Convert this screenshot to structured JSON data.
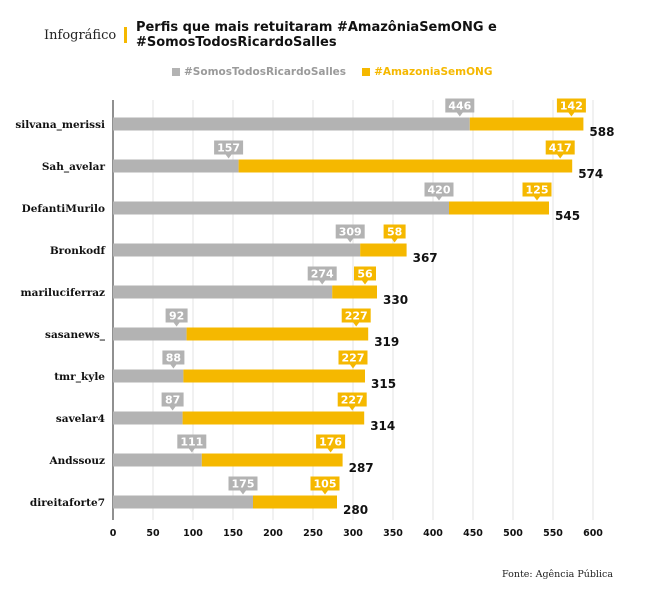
{
  "header": {
    "kicker": "Infográfico",
    "title": "Perfis que mais retuitaram #AmazôniaSemONG e #SomosTodosRicardoSalles"
  },
  "legend": [
    {
      "name": "#SomosTodosRicardoSalles",
      "color": "#b3b3b3"
    },
    {
      "name": "#AmazoniaSemONG",
      "color": "#f5b800"
    }
  ],
  "source": "Fonte: Agência Pública",
  "chart_data": {
    "type": "bar",
    "orientation": "horizontal",
    "stacked": true,
    "categories": [
      "silvana_merissi",
      "Sah_avelar",
      "DefantiMurilo",
      "Bronkodf",
      "mariluciferraz",
      "sasanews_",
      "tmr_kyle",
      "savelar4",
      "Andssouz",
      "direitaforte7"
    ],
    "series": [
      {
        "name": "#SomosTodosRicardoSalles",
        "color": "#b3b3b3",
        "values": [
          446,
          157,
          420,
          309,
          274,
          92,
          88,
          87,
          111,
          175
        ]
      },
      {
        "name": "#AmazoniaSemONG",
        "color": "#f5b800",
        "values": [
          142,
          417,
          125,
          58,
          56,
          227,
          227,
          227,
          176,
          105
        ]
      }
    ],
    "totals": [
      588,
      574,
      545,
      367,
      330,
      319,
      315,
      314,
      287,
      280
    ],
    "xlim": [
      0,
      600
    ],
    "xticks": [
      "0",
      "50",
      "100",
      "150",
      "200",
      "250",
      "300",
      "350",
      "400",
      "450",
      "500",
      "550",
      "600"
    ],
    "grid": true,
    "legend_position": "top"
  }
}
